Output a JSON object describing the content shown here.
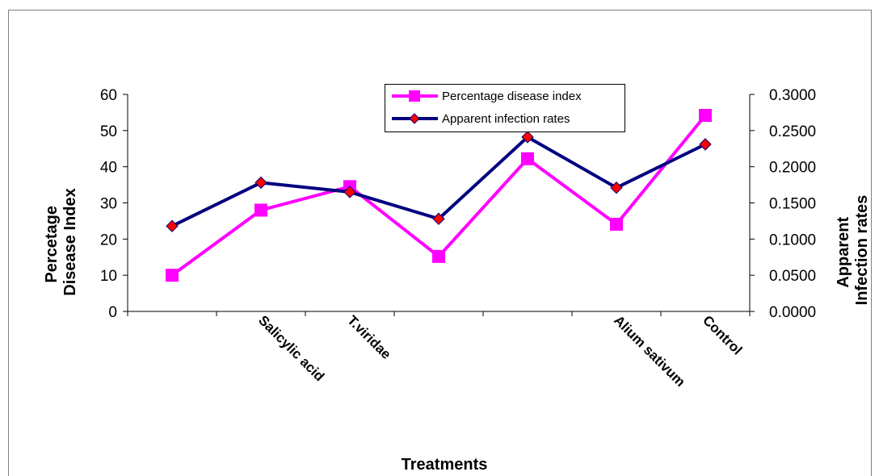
{
  "chart_data": {
    "type": "line",
    "title": "",
    "xlabel": "Treatments",
    "ylabel_left": [
      "Percetage",
      "Disease Index"
    ],
    "ylabel_right": [
      "Apparent",
      "Infection rates"
    ],
    "categories": [
      "",
      "Salicylic acid",
      "T.viridae",
      "",
      "",
      "Alium sativum",
      "Control"
    ],
    "y_left": {
      "min": 0,
      "max": 60,
      "ticks": [
        "0",
        "10",
        "20",
        "30",
        "40",
        "50",
        "60"
      ]
    },
    "y_right": {
      "min": 0,
      "max": 0.3,
      "ticks": [
        "0.0000",
        "0.0500",
        "0.1000",
        "0.1500",
        "0.2000",
        "0.2500",
        "0.3000"
      ]
    },
    "series": [
      {
        "name": "Percentage disease index",
        "axis": "left",
        "color": "#ff00ff",
        "marker": "square",
        "values": [
          10,
          28,
          34.5,
          15.2,
          42.2,
          24.1,
          54.2
        ]
      },
      {
        "name": "Apparent infection rates",
        "axis": "right",
        "color": "#000080",
        "marker": "diamond",
        "marker_color": "#ff0000",
        "values": [
          0.118,
          0.178,
          0.165,
          0.128,
          0.241,
          0.171,
          0.231
        ]
      }
    ],
    "grid": false,
    "legend_position": "top-center"
  }
}
